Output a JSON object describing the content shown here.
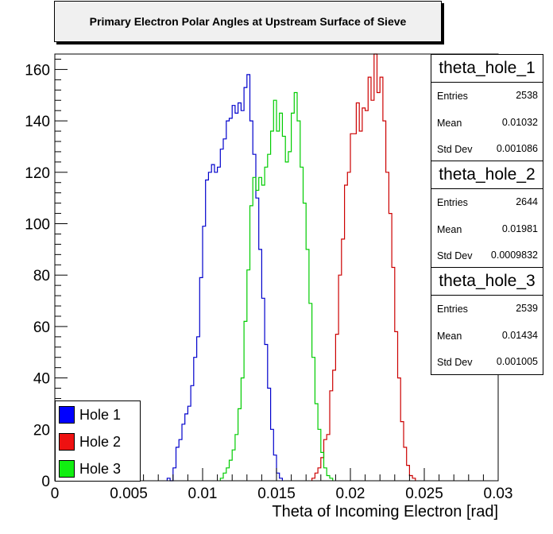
{
  "chart_data": {
    "type": "histogram",
    "title": "Primary Electron Polar Angles at Upstream Surface of Sieve",
    "xlabel": "Theta of Incoming Electron [rad]",
    "ylabel": "",
    "xlim": [
      0,
      0.03
    ],
    "ylim": [
      0,
      166
    ],
    "bin_width": 0.0002,
    "x_ticks": [
      "0",
      "0.005",
      "0.01",
      "0.015",
      "0.02",
      "0.025",
      "0.03"
    ],
    "y_ticks": [
      "0",
      "20",
      "40",
      "60",
      "80",
      "100",
      "120",
      "140",
      "160"
    ],
    "legend_position": "bottom-left",
    "series": [
      {
        "name": "Hole 1",
        "color": "#0000cc",
        "x_start": 0.0076,
        "values": [
          1,
          0,
          5,
          13,
          16,
          22,
          26,
          29,
          37,
          48,
          56,
          79,
          99,
          117,
          120,
          123,
          120,
          122,
          129,
          133,
          140,
          141,
          146,
          143,
          147,
          144,
          153,
          158,
          140,
          127,
          110,
          90,
          71,
          53,
          36,
          20,
          10,
          3,
          1
        ]
      },
      {
        "name": "Hole 2",
        "color": "#cc0000",
        "x_start": 0.0174,
        "values": [
          1,
          3,
          5,
          9,
          16,
          18,
          35,
          43,
          57,
          80,
          94,
          115,
          120,
          135,
          135,
          147,
          136,
          145,
          144,
          157,
          148,
          166,
          151,
          157,
          140,
          120,
          104,
          83,
          58,
          40,
          23,
          13,
          6,
          2,
          1
        ]
      },
      {
        "name": "Hole 3",
        "color": "#00cc00",
        "x_start": 0.0112,
        "values": [
          1,
          3,
          5,
          8,
          12,
          18,
          28,
          40,
          62,
          82,
          107,
          118,
          113,
          118,
          115,
          122,
          127,
          136,
          148,
          136,
          143,
          134,
          124,
          128,
          143,
          151,
          140,
          122,
          108,
          90,
          69,
          48,
          30,
          20,
          11,
          5,
          2,
          1
        ]
      }
    ]
  },
  "stats_boxes": [
    {
      "name": "theta_hole_1",
      "entries_label": "Entries",
      "entries": "2538",
      "mean_label": "Mean",
      "mean": "0.01032",
      "stddev_label": "Std Dev",
      "stddev": "0.001086"
    },
    {
      "name": "theta_hole_2",
      "entries_label": "Entries",
      "entries": "2644",
      "mean_label": "Mean",
      "mean": "0.01981",
      "stddev_label": "Std Dev",
      "stddev": "0.0009832"
    },
    {
      "name": "theta_hole_3",
      "entries_label": "Entries",
      "entries": "2539",
      "mean_label": "Mean",
      "mean": "0.01434",
      "stddev_label": "Std Dev",
      "stddev": "0.001005"
    }
  ]
}
